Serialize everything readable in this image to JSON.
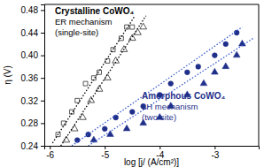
{
  "chart_data": {
    "type": "scatter",
    "x_label": "log [j/ (A/cm²)]",
    "y_label": "η (V)",
    "xlim": [
      -6.1,
      -2.2
    ],
    "ylim": [
      0.24,
      0.49
    ],
    "xticks": [
      -6,
      -5,
      -4,
      -3
    ],
    "yticks": [
      0.24,
      0.28,
      0.32,
      0.36,
      0.4,
      0.44,
      0.48
    ],
    "grid": false,
    "annotations": [
      "Crystalline CoWO₄",
      "ER mechanism",
      "(single-site)",
      "Amorphous CoWO₄",
      "LH mechanism",
      "(two-site)"
    ],
    "series": [
      {
        "type": "scatter",
        "marker": "open-square",
        "color": "#444444",
        "x": [
          -5.85,
          -5.75,
          -5.6,
          -5.5,
          -5.35,
          -5.2,
          -5.1,
          -4.95,
          -4.85,
          -4.7,
          -4.6,
          -4.5
        ],
        "values": [
          0.26,
          0.28,
          0.3,
          0.32,
          0.35,
          0.36,
          0.37,
          0.39,
          0.41,
          0.43,
          0.45,
          0.45
        ]
      },
      {
        "type": "scatter",
        "marker": "open-triangle",
        "color": "#444444",
        "x": [
          -5.7,
          -5.55,
          -5.4,
          -5.25,
          -5.1,
          -4.95,
          -4.8,
          -4.65,
          -4.5,
          -4.4,
          -4.3
        ],
        "values": [
          0.25,
          0.27,
          0.29,
          0.32,
          0.34,
          0.36,
          0.39,
          0.41,
          0.43,
          0.44,
          0.45
        ]
      },
      {
        "type": "line",
        "line_style": "dotted",
        "color": "#000000",
        "x": [
          -5.95,
          -4.45
        ],
        "values": [
          0.245,
          0.47
        ]
      },
      {
        "type": "line",
        "line_style": "dotted",
        "color": "#000000",
        "x": [
          -5.8,
          -4.25
        ],
        "values": [
          0.24,
          0.47
        ]
      },
      {
        "type": "scatter",
        "marker": "circle",
        "color": "#1f2f8a",
        "x": [
          -5.5,
          -5.3,
          -5.0,
          -4.8,
          -4.5,
          -4.3,
          -4.0,
          -3.8,
          -3.5,
          -3.3,
          -3.0,
          -2.8,
          -2.6
        ],
        "values": [
          0.25,
          0.26,
          0.27,
          0.29,
          0.3,
          0.31,
          0.33,
          0.35,
          0.37,
          0.38,
          0.4,
          0.42,
          0.44
        ]
      },
      {
        "type": "scatter",
        "marker": "triangle",
        "color": "#1f2f8a",
        "x": [
          -5.2,
          -4.9,
          -4.6,
          -4.3,
          -4.0,
          -3.8,
          -3.5,
          -3.2,
          -3.0,
          -2.8,
          -2.6,
          -2.5
        ],
        "values": [
          0.25,
          0.26,
          0.27,
          0.28,
          0.29,
          0.31,
          0.33,
          0.35,
          0.37,
          0.38,
          0.4,
          0.42
        ]
      },
      {
        "type": "line",
        "line_style": "dotted",
        "color": "#3a5bd0",
        "x": [
          -5.6,
          -2.5
        ],
        "values": [
          0.24,
          0.45
        ]
      },
      {
        "type": "line",
        "line_style": "dotted",
        "color": "#3a5bd0",
        "x": [
          -5.3,
          -2.3
        ],
        "values": [
          0.24,
          0.43
        ]
      }
    ]
  }
}
